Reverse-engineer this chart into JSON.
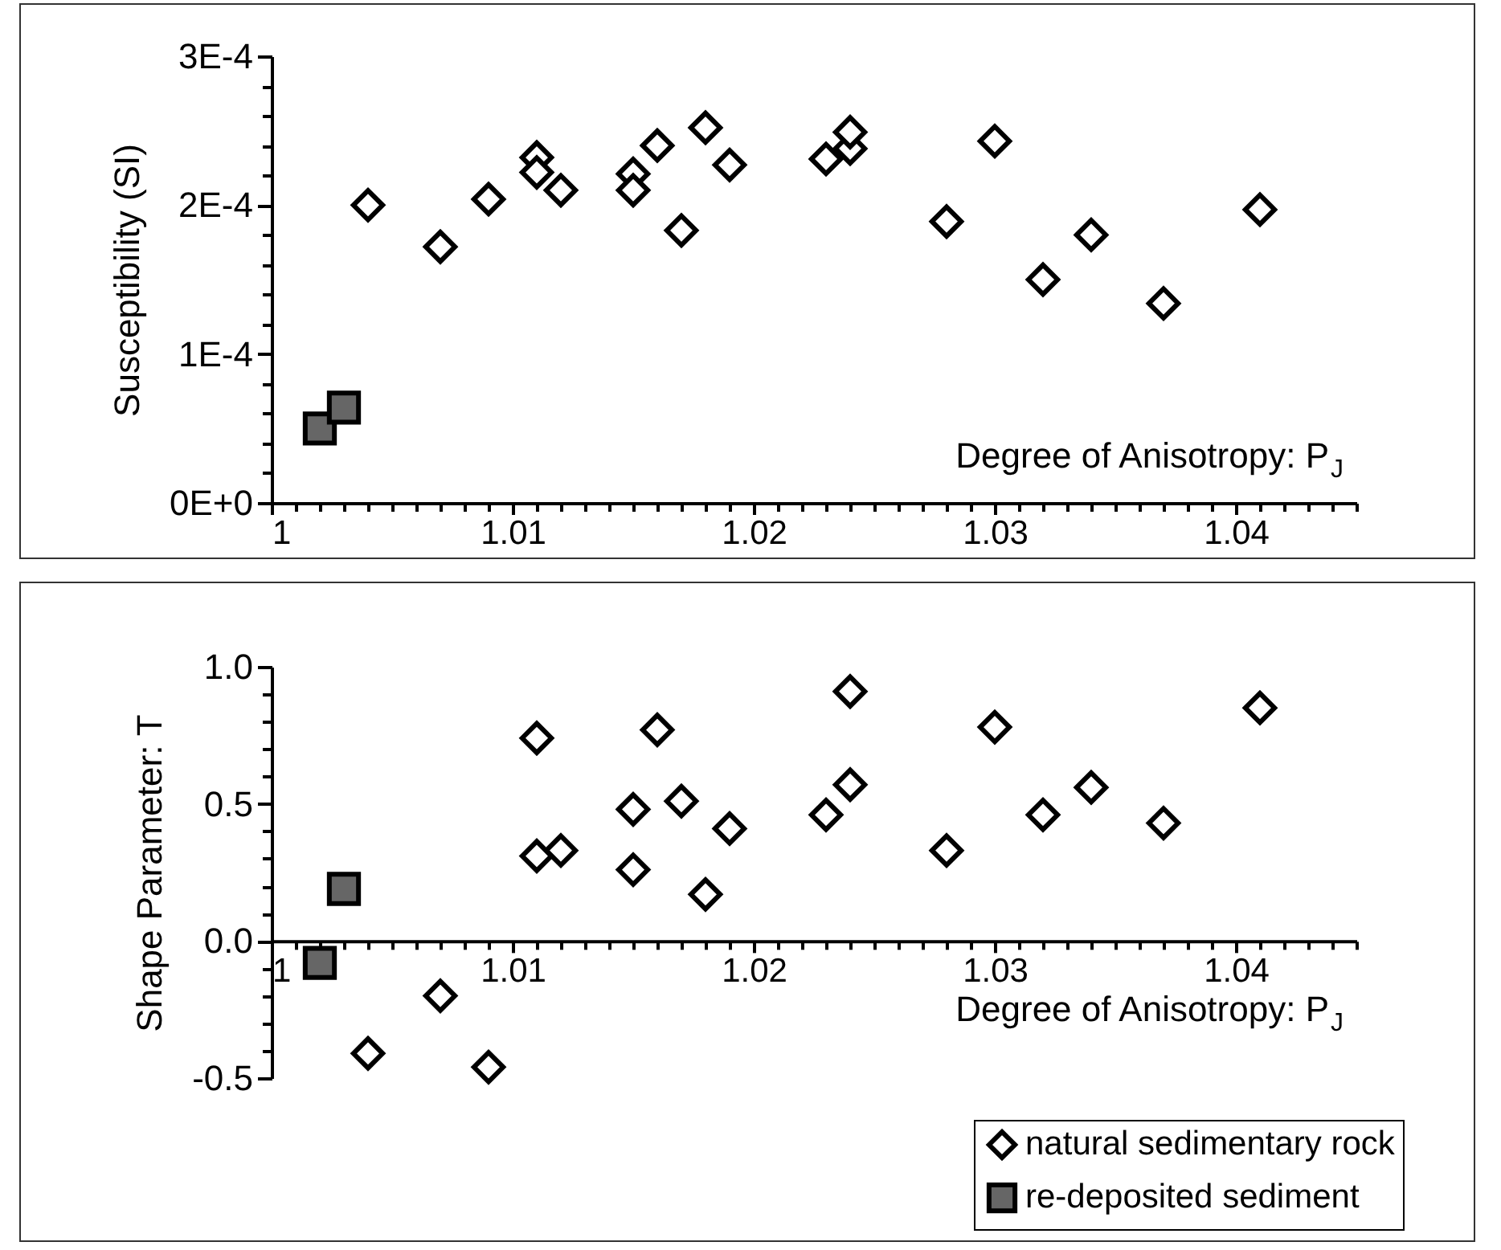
{
  "chart_data": [
    {
      "type": "scatter",
      "ylabel": "Susceptibility (SI)",
      "xlabel": "Degree of Anisotropy: P$_{J}$",
      "xlim": [
        1,
        1.045
      ],
      "xticks": [
        1,
        {
          "value": 1.001,
          "label": null
        },
        {
          "value": 1.002,
          "label": null
        },
        {
          "value": 1.003,
          "label": null
        },
        {
          "value": 1.004,
          "label": null
        },
        {
          "value": 1.005,
          "label": null
        },
        {
          "value": 1.006,
          "label": null
        },
        {
          "value": 1.007,
          "label": null
        },
        {
          "value": 1.008,
          "label": null
        },
        {
          "value": 1.009,
          "label": null
        },
        1.01,
        {
          "value": 1.011,
          "label": null
        },
        {
          "value": 1.012,
          "label": null
        },
        {
          "value": 1.013,
          "label": null
        },
        {
          "value": 1.014,
          "label": null
        },
        {
          "value": 1.015,
          "label": null
        },
        {
          "value": 1.016,
          "label": null
        },
        {
          "value": 1.017,
          "label": null
        },
        {
          "value": 1.018,
          "label": null
        },
        {
          "value": 1.019,
          "label": null
        },
        1.02,
        {
          "value": 1.021,
          "label": null
        },
        {
          "value": 1.022,
          "label": null
        },
        {
          "value": 1.023,
          "label": null
        },
        {
          "value": 1.024,
          "label": null
        },
        {
          "value": 1.025,
          "label": null
        },
        {
          "value": 1.026,
          "label": null
        },
        {
          "value": 1.027,
          "label": null
        },
        {
          "value": 1.028,
          "label": null
        },
        {
          "value": 1.029,
          "label": null
        },
        1.03,
        {
          "value": 1.031,
          "label": null
        },
        {
          "value": 1.032,
          "label": null
        },
        {
          "value": 1.033,
          "label": null
        },
        {
          "value": 1.034,
          "label": null
        },
        {
          "value": 1.035,
          "label": null
        },
        {
          "value": 1.036,
          "label": null
        },
        {
          "value": 1.037,
          "label": null
        },
        {
          "value": 1.038,
          "label": null
        },
        {
          "value": 1.039,
          "label": null
        },
        1.04,
        {
          "value": 1.041,
          "label": null
        },
        {
          "value": 1.042,
          "label": null
        },
        {
          "value": 1.043,
          "label": null
        },
        {
          "value": 1.044,
          "label": null
        },
        {
          "value": 1.045,
          "label": null
        }
      ],
      "ylim": [
        0,
        0.0003
      ],
      "yticks": [
        {
          "value": 0,
          "label": "0E+0"
        },
        {
          "value": 2e-05,
          "label": null
        },
        {
          "value": 4e-05,
          "label": null
        },
        {
          "value": 6e-05,
          "label": null
        },
        {
          "value": 8e-05,
          "label": null
        },
        {
          "value": 0.0001,
          "label": "1E-4"
        },
        {
          "value": 0.00012,
          "label": null
        },
        {
          "value": 0.00014,
          "label": null
        },
        {
          "value": 0.00016,
          "label": null
        },
        {
          "value": 0.00018,
          "label": null
        },
        {
          "value": 0.0002,
          "label": "2E-4"
        },
        {
          "value": 0.00022,
          "label": null
        },
        {
          "value": 0.00024,
          "label": null
        },
        {
          "value": 0.00026,
          "label": null
        },
        {
          "value": 0.00028,
          "label": null
        },
        {
          "value": 0.0003,
          "label": "3E-4"
        }
      ],
      "legend": false,
      "series": [
        {
          "color": "#ffffff",
          "marker": "diamond",
          "x": [
            1.004,
            1.007,
            1.009,
            1.011,
            1.011,
            1.012,
            1.015,
            1.015,
            1.016,
            1.017,
            1.018,
            1.019,
            1.023,
            1.024,
            1.024,
            1.028,
            1.03,
            1.032,
            1.034,
            1.037,
            1.041
          ],
          "values": [
            0.0002,
            0.000172,
            0.000204,
            0.000232,
            0.000222,
            0.00021,
            0.000221,
            0.00021,
            0.00024,
            0.000183,
            0.000252,
            0.000227,
            0.000231,
            0.000238,
            0.000249,
            0.000189,
            0.000243,
            0.00015,
            0.00018,
            0.000134,
            0.000197
          ]
        },
        {
          "color": "#666666",
          "marker": "square",
          "x": [
            1.002,
            1.003
          ],
          "values": [
            5e-05,
            6.4e-05
          ]
        }
      ]
    },
    {
      "type": "scatter",
      "ylabel": "Shape Parameter: T",
      "xlabel": "Degree of Anisotropy: P$_{J}$",
      "xlim": [
        1,
        1.045
      ],
      "xticks": [
        1,
        {
          "value": 1.001,
          "label": null
        },
        {
          "value": 1.002,
          "label": null
        },
        {
          "value": 1.003,
          "label": null
        },
        {
          "value": 1.004,
          "label": null
        },
        {
          "value": 1.005,
          "label": null
        },
        {
          "value": 1.006,
          "label": null
        },
        {
          "value": 1.007,
          "label": null
        },
        {
          "value": 1.008,
          "label": null
        },
        {
          "value": 1.009,
          "label": null
        },
        1.01,
        {
          "value": 1.011,
          "label": null
        },
        {
          "value": 1.012,
          "label": null
        },
        {
          "value": 1.013,
          "label": null
        },
        {
          "value": 1.014,
          "label": null
        },
        {
          "value": 1.015,
          "label": null
        },
        {
          "value": 1.016,
          "label": null
        },
        {
          "value": 1.017,
          "label": null
        },
        {
          "value": 1.018,
          "label": null
        },
        {
          "value": 1.019,
          "label": null
        },
        1.02,
        {
          "value": 1.021,
          "label": null
        },
        {
          "value": 1.022,
          "label": null
        },
        {
          "value": 1.023,
          "label": null
        },
        {
          "value": 1.024,
          "label": null
        },
        {
          "value": 1.025,
          "label": null
        },
        {
          "value": 1.026,
          "label": null
        },
        {
          "value": 1.027,
          "label": null
        },
        {
          "value": 1.028,
          "label": null
        },
        {
          "value": 1.029,
          "label": null
        },
        1.03,
        {
          "value": 1.031,
          "label": null
        },
        {
          "value": 1.032,
          "label": null
        },
        {
          "value": 1.033,
          "label": null
        },
        {
          "value": 1.034,
          "label": null
        },
        {
          "value": 1.035,
          "label": null
        },
        {
          "value": 1.036,
          "label": null
        },
        {
          "value": 1.037,
          "label": null
        },
        {
          "value": 1.038,
          "label": null
        },
        {
          "value": 1.039,
          "label": null
        },
        1.04,
        {
          "value": 1.041,
          "label": null
        },
        {
          "value": 1.042,
          "label": null
        },
        {
          "value": 1.043,
          "label": null
        },
        {
          "value": 1.044,
          "label": null
        },
        {
          "value": 1.045,
          "label": null
        }
      ],
      "ylim": [
        -0.5,
        1.0
      ],
      "yticks": [
        {
          "value": -0.5,
          "label": "-0.5"
        },
        {
          "value": -0.4,
          "label": null
        },
        {
          "value": -0.3,
          "label": null
        },
        {
          "value": -0.2,
          "label": null
        },
        {
          "value": -0.1,
          "label": null
        },
        {
          "value": 0,
          "label": "0.0"
        },
        {
          "value": 0.1,
          "label": null
        },
        {
          "value": 0.2,
          "label": null
        },
        {
          "value": 0.3,
          "label": null
        },
        {
          "value": 0.4,
          "label": null
        },
        {
          "value": 0.5,
          "label": "0.5"
        },
        {
          "value": 0.6,
          "label": null
        },
        {
          "value": 0.7,
          "label": null
        },
        {
          "value": 0.8,
          "label": null
        },
        {
          "value": 0.9,
          "label": null
        },
        {
          "value": 1.0,
          "label": "1.0"
        }
      ],
      "legend": "bottom right",
      "series": [
        {
          "name": "natural sedimentary rock",
          "color": "#ffffff",
          "marker": "diamond",
          "x": [
            1.004,
            1.007,
            1.009,
            1.011,
            1.011,
            1.012,
            1.015,
            1.015,
            1.016,
            1.017,
            1.018,
            1.019,
            1.023,
            1.024,
            1.024,
            1.028,
            1.03,
            1.032,
            1.034,
            1.037,
            1.041
          ],
          "values": [
            -0.41,
            -0.2,
            -0.46,
            0.74,
            0.31,
            0.33,
            0.48,
            0.26,
            0.77,
            0.51,
            0.17,
            0.41,
            0.46,
            0.91,
            0.57,
            0.33,
            0.78,
            0.46,
            0.56,
            0.43,
            0.85
          ]
        },
        {
          "name": "re-deposited sediment",
          "color": "#666666",
          "marker": "square",
          "x": [
            1.002,
            1.003
          ],
          "values": [
            -0.08,
            0.19
          ]
        }
      ]
    }
  ]
}
